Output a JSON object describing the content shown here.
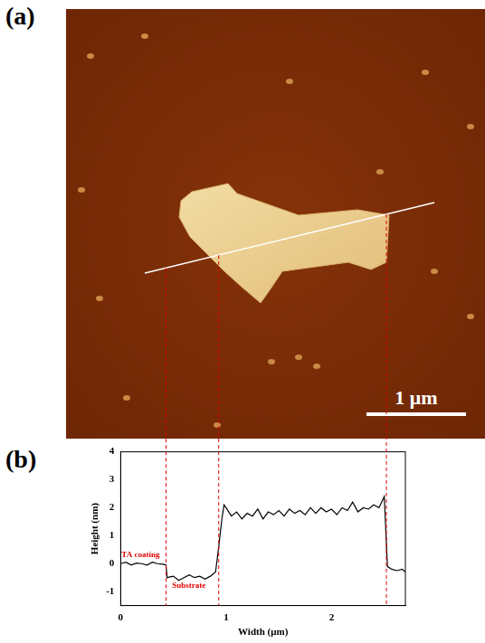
{
  "figure": {
    "panel_labels": [
      "(a)",
      "(b)"
    ],
    "scale_bar": "1 μm"
  },
  "chart_data": {
    "type": "line",
    "x_label": "Width (μm)",
    "y_label": "Height (nm)",
    "annotations": [
      {
        "text": "TA coating",
        "x": 0.0,
        "y": 0.15
      },
      {
        "text": "Substrate",
        "x": 0.48,
        "y": -0.95
      }
    ],
    "marker_lines": [
      0.43,
      0.93,
      2.52
    ],
    "x": [
      0,
      0.05,
      0.1,
      0.15,
      0.2,
      0.25,
      0.3,
      0.35,
      0.4,
      0.43,
      0.44,
      0.5,
      0.55,
      0.6,
      0.65,
      0.7,
      0.75,
      0.8,
      0.85,
      0.9,
      0.93,
      0.96,
      0.98,
      1.0,
      1.05,
      1.1,
      1.15,
      1.2,
      1.25,
      1.3,
      1.35,
      1.4,
      1.45,
      1.5,
      1.55,
      1.6,
      1.65,
      1.7,
      1.75,
      1.8,
      1.85,
      1.9,
      1.95,
      2.0,
      2.05,
      2.1,
      2.15,
      2.2,
      2.25,
      2.3,
      2.35,
      2.4,
      2.45,
      2.5,
      2.53,
      2.57,
      2.62,
      2.67,
      2.7
    ],
    "values": [
      0,
      0.05,
      -0.05,
      0.02,
      0.0,
      -0.05,
      0.05,
      0.0,
      -0.02,
      -0.05,
      -0.5,
      -0.45,
      -0.6,
      -0.5,
      -0.4,
      -0.5,
      -0.45,
      -0.55,
      -0.45,
      -0.3,
      0.6,
      1.6,
      2.1,
      2.0,
      1.7,
      1.85,
      1.6,
      1.8,
      1.7,
      1.95,
      1.6,
      1.85,
      1.75,
      1.9,
      1.7,
      1.95,
      1.8,
      1.9,
      1.75,
      2.0,
      1.8,
      2.0,
      1.85,
      1.95,
      1.75,
      2.0,
      1.9,
      2.2,
      1.85,
      2.0,
      1.95,
      2.1,
      2.0,
      2.4,
      -0.1,
      -0.2,
      -0.25,
      -0.2,
      -0.3
    ],
    "color": "#000000",
    "xlim": [
      0,
      2.7
    ],
    "xticks": [
      0,
      1,
      2
    ],
    "ylim": [
      -1.5,
      4
    ],
    "yticks": [
      -1,
      0,
      1,
      2,
      3,
      4
    ],
    "grid": false
  }
}
